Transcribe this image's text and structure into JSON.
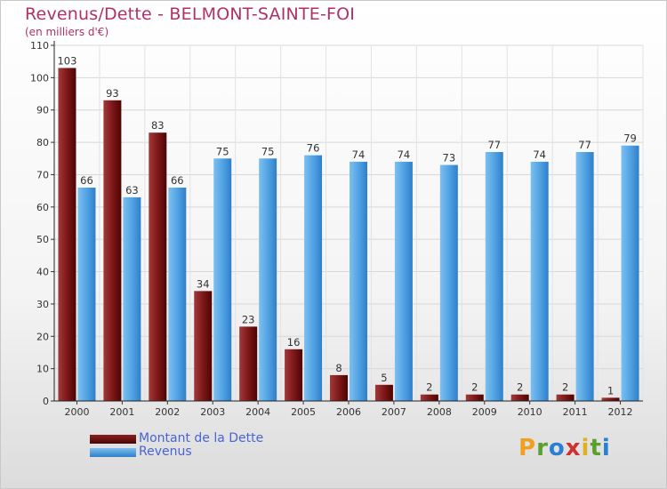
{
  "chart_data": {
    "type": "bar",
    "title": "Revenus/Dette - BELMONT-SAINTE-FOI",
    "subtitle": "(en milliers d'€)",
    "categories": [
      "2000",
      "2001",
      "2002",
      "2003",
      "2004",
      "2005",
      "2006",
      "2007",
      "2008",
      "2009",
      "2010",
      "2011",
      "2012"
    ],
    "series": [
      {
        "name": "Montant de la Dette",
        "color": "#6b0d0d",
        "values": [
          103,
          93,
          83,
          34,
          23,
          16,
          8,
          5,
          2,
          2,
          2,
          2,
          1
        ]
      },
      {
        "name": "Revenus",
        "color": "#4da0e0",
        "values": [
          66,
          63,
          66,
          75,
          75,
          76,
          74,
          74,
          73,
          77,
          74,
          77,
          79
        ]
      }
    ],
    "ylim": [
      0,
      110
    ],
    "yticks": [
      0,
      10,
      20,
      30,
      40,
      50,
      60,
      70,
      80,
      90,
      100,
      110
    ],
    "grid": true,
    "legend_position": "bottom-left"
  },
  "logo": {
    "letters": [
      "P",
      "r",
      "o",
      "x",
      "i",
      "t",
      "i"
    ],
    "colors": [
      "#f0a020",
      "#5aa02c",
      "#2a7fd4",
      "#d03030",
      "#e0b020",
      "#5aa02c",
      "#2a7fd4"
    ]
  }
}
